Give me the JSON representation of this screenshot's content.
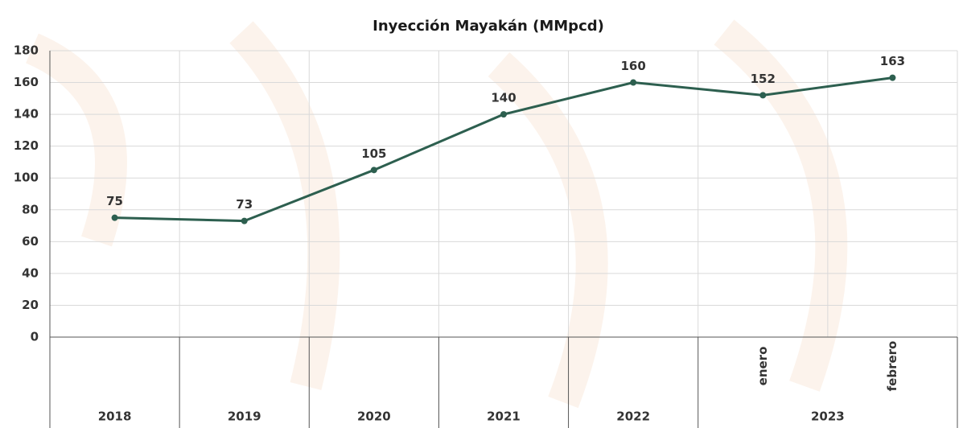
{
  "chart_data": {
    "type": "line",
    "title": "Inyección Mayakán  (MMpcd)",
    "categories": [
      "2018",
      "2019",
      "2020",
      "2021",
      "2022",
      "enero",
      "febrero"
    ],
    "category_group": {
      "label": "2023",
      "start": 5,
      "count": 2
    },
    "series": [
      {
        "name": "Inyección Mayakán",
        "color": "#2d5f4f",
        "values": [
          75,
          73,
          105,
          140,
          160,
          152,
          163
        ]
      }
    ],
    "ylim": [
      0,
      180
    ],
    "yticks": [
      0,
      20,
      40,
      60,
      80,
      100,
      120,
      140,
      160,
      180
    ],
    "grid": true,
    "data_labels": true
  }
}
